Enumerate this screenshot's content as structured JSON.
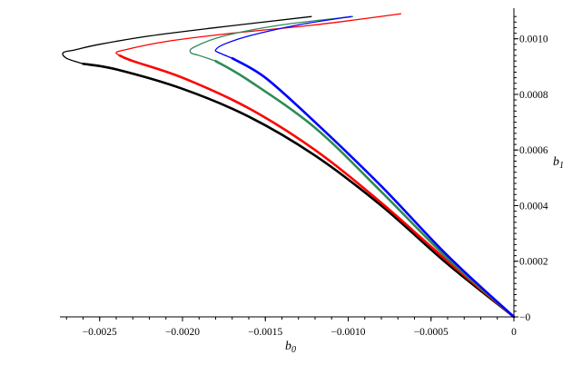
{
  "chart_data": {
    "type": "line",
    "title": "",
    "xlabel": "b",
    "xlabel_subscript": "0",
    "ylabel": "b",
    "ylabel_subscript": "1",
    "xlim": [
      -0.0028,
      0.0
    ],
    "ylim": [
      0.0,
      0.00111
    ],
    "grid": false,
    "x_ticks": [
      -0.0025,
      -0.002,
      -0.0015,
      -0.001,
      -0.0005,
      0
    ],
    "x_tick_labels": [
      "−0.0025",
      "−0.0020",
      "−0.0015",
      "−0.0010",
      "−0.0005",
      "0"
    ],
    "y_ticks": [
      0,
      0.0002,
      0.0004,
      0.0006,
      0.0008,
      0.001
    ],
    "y_tick_labels": [
      "0",
      "0.0002",
      "0.0004",
      "0.0006",
      "0.0008",
      "0.0010"
    ],
    "series": [
      {
        "color": "#000000",
        "thin": [
          [
            -0.00122,
            0.00108
          ],
          [
            -0.0018,
            0.00104
          ],
          [
            -0.0022,
            0.00101
          ],
          [
            -0.0025,
            0.00098
          ],
          [
            -0.00265,
            0.00096
          ],
          [
            -0.00272,
            0.00095
          ],
          [
            -0.0027,
            0.00093
          ],
          [
            -0.0026,
            0.00091
          ]
        ],
        "thick": [
          [
            -0.0026,
            0.00091
          ],
          [
            -0.0024,
            0.00089
          ],
          [
            -0.002,
            0.00082
          ],
          [
            -0.0016,
            0.00072
          ],
          [
            -0.0012,
            0.00058
          ],
          [
            -0.0008,
            0.0004
          ],
          [
            -0.0004,
            0.00019
          ],
          [
            0.0,
            0.0
          ]
        ]
      },
      {
        "color": "#ff0000",
        "thin": [
          [
            -0.00068,
            0.00109
          ],
          [
            -0.0012,
            0.00105
          ],
          [
            -0.0017,
            0.00102
          ],
          [
            -0.0021,
            0.00099
          ],
          [
            -0.00235,
            0.00096
          ],
          [
            -0.0024,
            0.00095
          ],
          [
            -0.00238,
            0.00094
          ]
        ],
        "thick": [
          [
            -0.00238,
            0.00094
          ],
          [
            -0.0023,
            0.00092
          ],
          [
            -0.002,
            0.00086
          ],
          [
            -0.0016,
            0.00075
          ],
          [
            -0.0012,
            0.0006
          ],
          [
            -0.0008,
            0.00041
          ],
          [
            -0.0004,
            0.0002
          ],
          [
            0.0,
            0.0
          ]
        ]
      },
      {
        "color": "#2e8b57",
        "thin": [
          [
            -0.00097,
            0.00108
          ],
          [
            -0.0014,
            0.00105
          ],
          [
            -0.00175,
            0.00101
          ],
          [
            -0.00193,
            0.00097
          ],
          [
            -0.00195,
            0.00095
          ],
          [
            -0.0019,
            0.00094
          ],
          [
            -0.0018,
            0.00092
          ]
        ],
        "thick": [
          [
            -0.0018,
            0.00092
          ],
          [
            -0.0016,
            0.00085
          ],
          [
            -0.0012,
            0.00068
          ],
          [
            -0.0008,
            0.00045
          ],
          [
            -0.0004,
            0.00021
          ],
          [
            0.0,
            0.0
          ]
        ]
      },
      {
        "color": "#0000ff",
        "thin": [
          [
            -0.00098,
            0.00108
          ],
          [
            -0.0013,
            0.00105
          ],
          [
            -0.0016,
            0.00101
          ],
          [
            -0.00175,
            0.00098
          ],
          [
            -0.0018,
            0.00096
          ],
          [
            -0.00178,
            0.00095
          ],
          [
            -0.0017,
            0.00093
          ]
        ],
        "thick": [
          [
            -0.0017,
            0.00093
          ],
          [
            -0.0015,
            0.00086
          ],
          [
            -0.0012,
            0.0007
          ],
          [
            -0.0008,
            0.00047
          ],
          [
            -0.0004,
            0.00022
          ],
          [
            0.0,
            0.0
          ]
        ]
      }
    ]
  }
}
